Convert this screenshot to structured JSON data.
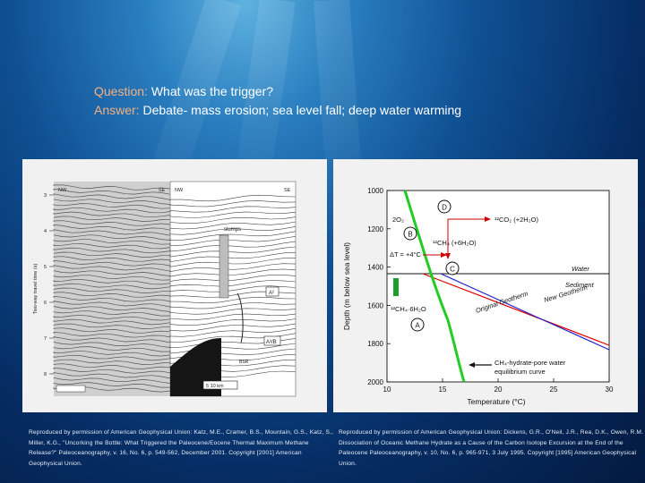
{
  "slide": {
    "question_label": "Question:",
    "question_text": "What was the trigger?",
    "answer_label": "Answer:",
    "answer_text": "Debate- mass erosion; sea level fall; deep water warming"
  },
  "left_figure": {
    "label_nw_left": "NW",
    "label_se_left": "SE",
    "label_nw_right": "NW",
    "label_se_right": "SE",
    "label_slumps": "slumps",
    "label_a": "A²",
    "label_b": "A³/B",
    "label_c": "BSR",
    "label_scale": "5  10 km",
    "y_axis_label": "Two-way travel time (s)",
    "y_ticks": [
      "3",
      "4",
      "5",
      "6",
      "7",
      "8"
    ]
  },
  "right_figure": {
    "y_ticks": [
      "1000",
      "1200",
      "1400",
      "1600",
      "1800",
      "2000"
    ],
    "x_ticks": [
      "10",
      "15",
      "20",
      "25",
      "30"
    ],
    "y_label": "Depth (m below sea level)",
    "x_label": "Temperature (°C)",
    "label_d": "D",
    "label_b": "B",
    "label_c": "C",
    "label_a": "A",
    "text_2o2": "2O₂",
    "text_co2": "¹²CO₂ (+2H₂O)",
    "text_ch4": "¹²CH₄ (+6H₂O)",
    "text_dt": "ΔT = +4°C",
    "text_ch4h2o": "¹²CH₄·6H₂O",
    "text_water": "Water",
    "text_sediment": "Sediment",
    "text_new_geotherm": "New Geotherm",
    "text_orig_geotherm": "Original Geotherm",
    "text_curve_1": "CH₄-hydrate-pore water",
    "text_curve_2": "equilibrium curve"
  },
  "credits": {
    "left": "Reproduced by permission of American Geophysical Union: Katz, M.E., Cramer, B.S., Mountain, G.S., Katz, S., Miller, K.G., \"Uncorking the Bottle: What Triggered the Paleocene/Eocene Thermal Maximum Methane Release?\" Paleoceanography, v. 16, No. 6, p. 549-562, December 2001. Copyright [2001] American Geophysical Union.",
    "right": "Reproduced by permission of American Geophysical Union: Dickens, G.R., O'Neil, J.R., Rea, D.K., Owen, R.M. Dissociation of Oceanic Methane Hydrate as a Cause of the Carbon Isotope Excursion at the End of the Paleocene Paleoceanography, v. 10, No. 6, p. 965-971, 3 July 1995. Copyright [1995] American Geophysical Union."
  },
  "colors": {
    "question_label": "#f3b183",
    "orig_geotherm": "#2222cc",
    "new_geotherm": "#e00000",
    "equilibrium_curve": "#22cc22",
    "box_green": "#1e9d2e"
  }
}
